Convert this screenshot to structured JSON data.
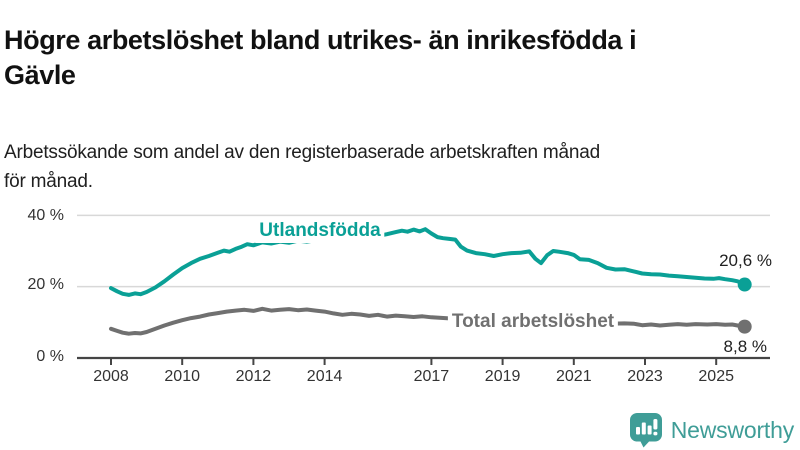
{
  "header": {
    "title_lines": [
      "Högre arbetslöshet bland utrikes- än inrikesfödda i",
      "Gävle"
    ],
    "subtitle_lines": [
      "Arbetssökande som andel av den registerbaserade arbetskraften månad",
      "för månad."
    ]
  },
  "chart_data": {
    "type": "line",
    "title": "Högre arbetslöshet bland utrikes- än inrikesfödda i Gävle",
    "subtitle": "Arbetssökande som andel av den registerbaserade arbetskraften månad för månad.",
    "unit": "%",
    "grid": "horizontal",
    "legend_position": "inline-on-line",
    "x_axis": {
      "range": [
        2007.8,
        2026.5
      ],
      "tick_years": [
        2008,
        2010,
        2012,
        2014,
        2017,
        2019,
        2021,
        2023,
        2025
      ],
      "tick_labels": [
        "2008",
        "2010",
        "2012",
        "2014",
        "2017",
        "2019",
        "2021",
        "2023",
        "2025"
      ]
    },
    "y_axis": {
      "range": [
        0,
        42
      ],
      "ticks": [
        0,
        20,
        40
      ],
      "labels": [
        "0 %",
        "20 %",
        "40 %"
      ]
    },
    "series": [
      {
        "id": "utlandsfodda",
        "name": "Utlandsfödda",
        "color": "#0aa096",
        "end_value": 20.6,
        "end_label": "20,6 %",
        "points": [
          [
            2008.0,
            19.6
          ],
          [
            2008.17,
            18.7
          ],
          [
            2008.33,
            18.0
          ],
          [
            2008.5,
            17.7
          ],
          [
            2008.67,
            18.1
          ],
          [
            2008.83,
            17.9
          ],
          [
            2009.0,
            18.5
          ],
          [
            2009.25,
            19.8
          ],
          [
            2009.5,
            21.5
          ],
          [
            2009.75,
            23.4
          ],
          [
            2010.0,
            25.2
          ],
          [
            2010.25,
            26.6
          ],
          [
            2010.5,
            27.8
          ],
          [
            2010.75,
            28.6
          ],
          [
            2011.0,
            29.5
          ],
          [
            2011.17,
            30.1
          ],
          [
            2011.33,
            29.8
          ],
          [
            2011.5,
            30.6
          ],
          [
            2011.67,
            31.2
          ],
          [
            2011.83,
            31.9
          ],
          [
            2012.0,
            31.6
          ],
          [
            2012.25,
            32.4
          ],
          [
            2012.5,
            32.1
          ],
          [
            2012.75,
            32.6
          ],
          [
            2013.0,
            32.3
          ],
          [
            2013.25,
            32.9
          ],
          [
            2013.5,
            32.6
          ],
          [
            2013.75,
            33.0
          ],
          [
            2014.0,
            32.8
          ],
          [
            2014.25,
            33.2
          ],
          [
            2014.5,
            33.0
          ],
          [
            2014.75,
            33.5
          ],
          [
            2015.0,
            33.3
          ],
          [
            2015.25,
            33.9
          ],
          [
            2015.5,
            34.2
          ],
          [
            2015.75,
            34.7
          ],
          [
            2016.0,
            35.3
          ],
          [
            2016.17,
            35.7
          ],
          [
            2016.33,
            35.4
          ],
          [
            2016.5,
            36.0
          ],
          [
            2016.67,
            35.5
          ],
          [
            2016.83,
            36.1
          ],
          [
            2017.0,
            34.9
          ],
          [
            2017.17,
            33.9
          ],
          [
            2017.33,
            33.6
          ],
          [
            2017.5,
            33.4
          ],
          [
            2017.67,
            33.2
          ],
          [
            2017.83,
            31.2
          ],
          [
            2018.0,
            30.1
          ],
          [
            2018.25,
            29.4
          ],
          [
            2018.5,
            29.1
          ],
          [
            2018.75,
            28.6
          ],
          [
            2019.0,
            29.1
          ],
          [
            2019.25,
            29.4
          ],
          [
            2019.5,
            29.5
          ],
          [
            2019.75,
            29.9
          ],
          [
            2019.92,
            27.8
          ],
          [
            2020.08,
            26.6
          ],
          [
            2020.25,
            28.8
          ],
          [
            2020.42,
            30.0
          ],
          [
            2020.58,
            29.8
          ],
          [
            2020.83,
            29.4
          ],
          [
            2021.0,
            28.9
          ],
          [
            2021.17,
            27.7
          ],
          [
            2021.42,
            27.5
          ],
          [
            2021.67,
            26.6
          ],
          [
            2021.92,
            25.3
          ],
          [
            2022.17,
            24.8
          ],
          [
            2022.42,
            24.9
          ],
          [
            2022.67,
            24.3
          ],
          [
            2022.92,
            23.7
          ],
          [
            2023.17,
            23.5
          ],
          [
            2023.42,
            23.4
          ],
          [
            2023.67,
            23.1
          ],
          [
            2023.92,
            22.9
          ],
          [
            2024.17,
            22.7
          ],
          [
            2024.42,
            22.5
          ],
          [
            2024.67,
            22.3
          ],
          [
            2024.92,
            22.2
          ],
          [
            2025.08,
            22.4
          ],
          [
            2025.25,
            22.1
          ],
          [
            2025.45,
            21.8
          ],
          [
            2025.6,
            21.5
          ],
          [
            2025.8,
            20.6
          ]
        ]
      },
      {
        "id": "total",
        "name": "Total arbetslöshet",
        "color": "#707070",
        "end_value": 8.8,
        "end_label": "8,8 %",
        "points": [
          [
            2008.0,
            8.2
          ],
          [
            2008.17,
            7.6
          ],
          [
            2008.33,
            7.1
          ],
          [
            2008.5,
            6.8
          ],
          [
            2008.67,
            7.0
          ],
          [
            2008.83,
            6.9
          ],
          [
            2009.0,
            7.3
          ],
          [
            2009.25,
            8.2
          ],
          [
            2009.5,
            9.1
          ],
          [
            2009.75,
            9.9
          ],
          [
            2010.0,
            10.6
          ],
          [
            2010.25,
            11.2
          ],
          [
            2010.5,
            11.6
          ],
          [
            2010.75,
            12.2
          ],
          [
            2011.0,
            12.6
          ],
          [
            2011.25,
            13.0
          ],
          [
            2011.5,
            13.3
          ],
          [
            2011.75,
            13.5
          ],
          [
            2012.0,
            13.2
          ],
          [
            2012.25,
            13.8
          ],
          [
            2012.5,
            13.3
          ],
          [
            2012.75,
            13.5
          ],
          [
            2013.0,
            13.7
          ],
          [
            2013.25,
            13.4
          ],
          [
            2013.5,
            13.6
          ],
          [
            2013.75,
            13.3
          ],
          [
            2014.0,
            13.0
          ],
          [
            2014.25,
            12.5
          ],
          [
            2014.5,
            12.1
          ],
          [
            2014.75,
            12.4
          ],
          [
            2015.0,
            12.2
          ],
          [
            2015.25,
            11.8
          ],
          [
            2015.5,
            12.1
          ],
          [
            2015.75,
            11.6
          ],
          [
            2016.0,
            11.9
          ],
          [
            2016.25,
            11.7
          ],
          [
            2016.5,
            11.5
          ],
          [
            2016.75,
            11.7
          ],
          [
            2017.0,
            11.4
          ],
          [
            2017.5,
            11.1
          ],
          [
            2018.0,
            10.8
          ],
          [
            2018.5,
            10.5
          ],
          [
            2019.0,
            10.3
          ],
          [
            2019.5,
            10.1
          ],
          [
            2020.0,
            10.5
          ],
          [
            2020.42,
            11.0
          ],
          [
            2021.0,
            10.4
          ],
          [
            2021.5,
            9.9
          ],
          [
            2022.0,
            9.6
          ],
          [
            2022.42,
            9.7
          ],
          [
            2022.7,
            9.6
          ],
          [
            2022.92,
            9.2
          ],
          [
            2023.17,
            9.4
          ],
          [
            2023.42,
            9.1
          ],
          [
            2023.67,
            9.3
          ],
          [
            2023.92,
            9.5
          ],
          [
            2024.17,
            9.3
          ],
          [
            2024.42,
            9.5
          ],
          [
            2024.75,
            9.4
          ],
          [
            2025.0,
            9.5
          ],
          [
            2025.25,
            9.3
          ],
          [
            2025.45,
            9.4
          ],
          [
            2025.6,
            9.1
          ],
          [
            2025.8,
            8.8
          ]
        ]
      }
    ]
  },
  "branding": {
    "name": "Newsworthy",
    "color": "#3f9d97",
    "icon": "newsworthy-chart-pin-icon"
  }
}
